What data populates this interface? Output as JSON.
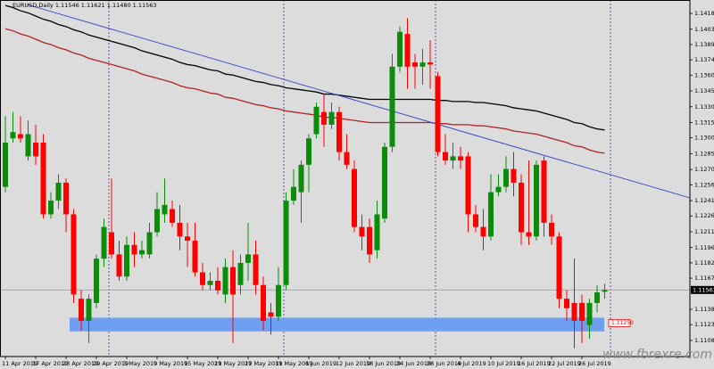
{
  "chart_data": {
    "type": "candlestick",
    "title": "EURUSD,Daily  1.11546 1.11621 1.11480 1.11563",
    "watermark": "www.fbrexre.com",
    "categories": [
      "11 Apr 2019",
      null,
      null,
      null,
      "17 Apr 2019",
      null,
      null,
      null,
      "23 Apr 2019",
      null,
      null,
      null,
      "29 Apr 2019",
      null,
      null,
      null,
      "3 May 2019",
      null,
      null,
      null,
      "9 May 2019",
      null,
      null,
      null,
      "15 May 2019",
      null,
      null,
      null,
      "21 May 2019",
      null,
      null,
      null,
      "27 May 2019",
      null,
      null,
      null,
      "31 May 2019",
      null,
      null,
      null,
      "6 Jun 2019",
      null,
      null,
      null,
      "12 Jun 2019",
      null,
      null,
      null,
      "18 Jun 2019",
      null,
      null,
      null,
      "24 Jun 2019",
      null,
      null,
      null,
      "28 Jun 2019",
      null,
      null,
      null,
      "4 Jul 2019",
      null,
      null,
      null,
      "10 Jul 2019",
      null,
      null,
      null,
      "16 Jul 2019",
      null,
      null,
      null,
      "22 Jul 2019",
      null,
      null,
      null,
      "26 Jul 2019",
      null,
      null,
      null
    ],
    "up_color": "#0b8c0b",
    "down_color": "#ff0000",
    "open": [
      1.1254,
      1.13,
      1.1304,
      1.1283,
      1.1296,
      1.1296,
      1.1228,
      1.1241,
      1.1258,
      1.1228,
      1.1148,
      1.1127,
      1.1144,
      1.1186,
      1.1211,
      1.119,
      1.1169,
      1.1199,
      1.119,
      1.119,
      1.1211,
      1.1228,
      1.1233,
      1.122,
      1.1207,
      1.1203,
      1.1173,
      1.1161,
      1.1165,
      1.1152,
      1.1178,
      1.1161,
      1.1182,
      1.119,
      1.1161,
      1.1135,
      1.1131,
      1.1161,
      1.1241,
      1.1249,
      1.1275,
      1.1304,
      1.1325,
      1.1313,
      1.1325,
      1.1287,
      1.1271,
      1.1216,
      1.1216,
      1.1194,
      1.1224,
      1.1292,
      1.1368,
      1.1399,
      1.1372,
      1.1368,
      1.1372,
      1.1359,
      1.1287,
      1.1279,
      1.1283,
      1.1283,
      1.1228,
      1.1216,
      1.1207,
      1.1249,
      1.1254,
      1.1271,
      1.1258,
      1.1211,
      1.1207,
      1.1279,
      1.122,
      1.1207,
      1.1148,
      1.1144,
      1.1144,
      1.1123,
      1.1144,
      1.11546
    ],
    "high": [
      1.1321,
      1.1325,
      1.1321,
      1.1317,
      1.1313,
      1.1304,
      1.1249,
      1.1266,
      1.1262,
      1.1233,
      1.1156,
      1.1152,
      1.119,
      1.1224,
      1.1262,
      1.1203,
      1.1207,
      1.1211,
      1.1203,
      1.122,
      1.1249,
      1.1262,
      1.1241,
      1.1237,
      1.122,
      1.122,
      1.1182,
      1.1173,
      1.1178,
      1.1186,
      1.1194,
      1.119,
      1.122,
      1.1203,
      1.1169,
      1.1144,
      1.1178,
      1.1249,
      1.1271,
      1.1279,
      1.1304,
      1.1334,
      1.1342,
      1.1334,
      1.133,
      1.1304,
      1.1279,
      1.1228,
      1.1224,
      1.1241,
      1.1296,
      1.138,
      1.1406,
      1.1414,
      1.138,
      1.1385,
      1.1393,
      1.1363,
      1.1304,
      1.1296,
      1.1292,
      1.1287,
      1.1237,
      1.1233,
      1.1266,
      1.1266,
      1.1283,
      1.1287,
      1.1266,
      1.1279,
      1.1279,
      1.1283,
      1.1228,
      1.1211,
      1.1156,
      1.1186,
      1.1152,
      1.1148,
      1.1161,
      1.11621
    ],
    "low": [
      1.1249,
      1.1296,
      1.1296,
      1.1279,
      1.1275,
      1.1224,
      1.1224,
      1.1233,
      1.1211,
      1.1144,
      1.1118,
      1.1106,
      1.1139,
      1.1178,
      1.1186,
      1.1165,
      1.1165,
      1.1178,
      1.1186,
      1.1186,
      1.1207,
      1.122,
      1.1216,
      1.1194,
      1.1178,
      1.1169,
      1.1156,
      1.1156,
      1.1152,
      1.1144,
      1.1106,
      1.1152,
      1.1165,
      1.1152,
      1.1118,
      1.1114,
      1.1127,
      1.1156,
      1.1237,
      1.122,
      1.1249,
      1.13,
      1.1292,
      1.1309,
      1.1279,
      1.1271,
      1.1211,
      1.1194,
      1.1182,
      1.1186,
      1.122,
      1.1287,
      1.1363,
      1.1347,
      1.1347,
      1.1351,
      1.1347,
      1.1283,
      1.1275,
      1.1271,
      1.1271,
      1.1211,
      1.1211,
      1.1194,
      1.1203,
      1.1245,
      1.1249,
      1.1245,
      1.1199,
      1.1199,
      1.1203,
      1.1207,
      1.1199,
      1.1139,
      1.1127,
      1.1101,
      1.1106,
      1.111,
      1.1135,
      1.1148
    ],
    "close": [
      1.1296,
      1.1306,
      1.13,
      1.1304,
      1.1283,
      1.1228,
      1.1241,
      1.1258,
      1.1228,
      1.1152,
      1.1127,
      1.1148,
      1.1186,
      1.1216,
      1.119,
      1.1169,
      1.1199,
      1.119,
      1.1194,
      1.1211,
      1.1233,
      1.1237,
      1.122,
      1.1207,
      1.1203,
      1.1173,
      1.1161,
      1.1165,
      1.1156,
      1.1178,
      1.1152,
      1.1182,
      1.119,
      1.1161,
      1.1127,
      1.1131,
      1.1161,
      1.1241,
      1.1254,
      1.1275,
      1.13,
      1.133,
      1.1313,
      1.1325,
      1.1287,
      1.1275,
      1.1216,
      1.1207,
      1.119,
      1.1228,
      1.1292,
      1.1368,
      1.1401,
      1.1368,
      1.1368,
      1.1372,
      1.137,
      1.1287,
      1.1279,
      1.1283,
      1.1279,
      1.1228,
      1.1216,
      1.1207,
      1.1249,
      1.1254,
      1.1271,
      1.1258,
      1.1211,
      1.1207,
      1.1275,
      1.122,
      1.1207,
      1.1148,
      1.1139,
      1.1127,
      1.1127,
      1.1144,
      1.1154,
      1.11563
    ],
    "lines": [
      {
        "color": "#000000",
        "values": [
          1.1426,
          1.1424,
          1.1421,
          1.1419,
          1.1416,
          1.1413,
          1.1411,
          1.1408,
          1.1406,
          1.1403,
          1.1401,
          1.1398,
          1.1396,
          1.1394,
          1.1392,
          1.139,
          1.1388,
          1.1386,
          1.1383,
          1.1381,
          1.1379,
          1.1377,
          1.1375,
          1.1372,
          1.137,
          1.1369,
          1.1367,
          1.1365,
          1.1364,
          1.1361,
          1.136,
          1.1358,
          1.1356,
          1.1354,
          1.1353,
          1.1351,
          1.135,
          1.1348,
          1.1347,
          1.1346,
          1.1345,
          1.1344,
          1.1342,
          1.1342,
          1.1341,
          1.134,
          1.1339,
          1.1338,
          1.1337,
          1.1337,
          1.1337,
          1.1337,
          1.1337,
          1.1337,
          1.1337,
          1.1337,
          1.1337,
          1.1336,
          1.1336,
          1.1335,
          1.1335,
          1.1335,
          1.1334,
          1.1334,
          1.1333,
          1.1332,
          1.1331,
          1.1329,
          1.1328,
          1.1327,
          1.1326,
          1.1324,
          1.1322,
          1.132,
          1.1318,
          1.1315,
          1.1314,
          1.1311,
          1.1309,
          1.1308
        ]
      },
      {
        "color": "#b22222",
        "values": [
          1.1404,
          1.1402,
          1.1399,
          1.1397,
          1.1394,
          1.1391,
          1.1389,
          1.1386,
          1.1384,
          1.1381,
          1.1379,
          1.1376,
          1.1374,
          1.1372,
          1.137,
          1.1368,
          1.1366,
          1.1364,
          1.1361,
          1.1359,
          1.1357,
          1.1355,
          1.1353,
          1.135,
          1.1348,
          1.1347,
          1.1345,
          1.1343,
          1.1342,
          1.1339,
          1.1338,
          1.1336,
          1.1334,
          1.1332,
          1.1331,
          1.1329,
          1.1328,
          1.1326,
          1.1325,
          1.1324,
          1.1323,
          1.1322,
          1.132,
          1.132,
          1.1319,
          1.1318,
          1.1317,
          1.1316,
          1.1315,
          1.1315,
          1.1315,
          1.1315,
          1.1315,
          1.1315,
          1.1315,
          1.1315,
          1.1315,
          1.1314,
          1.1314,
          1.1313,
          1.1313,
          1.1313,
          1.1312,
          1.1312,
          1.1311,
          1.131,
          1.1309,
          1.1307,
          1.1306,
          1.1305,
          1.1304,
          1.1302,
          1.13,
          1.1298,
          1.1296,
          1.1293,
          1.1292,
          1.1289,
          1.1287,
          1.1286
        ]
      }
    ],
    "zone": {
      "high": 1.113,
      "low": 1.1117,
      "color": "#6f9ff0"
    },
    "alert": {
      "value": 1.1125,
      "label": "1.11250"
    },
    "last_price": 1.11563,
    "ylim": [
      1.10932,
      1.14312
    ],
    "yticks": [
      1.14185,
      1.14035,
      {
        "value": 1.1389,
        "label": "1.13890"
      },
      1.13745,
      {
        "value": 1.136,
        "label": "1.13600"
      },
      {
        "value": 1.1345,
        "label": "1.13450"
      },
      {
        "value": 1.133,
        "label": "1.13300"
      },
      {
        "value": 1.1315,
        "label": "1.13150"
      },
      1.13005,
      1.12855,
      1.12705,
      {
        "value": 1.1256,
        "label": "1.12560"
      },
      {
        "value": 1.1241,
        "label": "1.12410"
      },
      1.12265,
      1.12115,
      1.11965,
      {
        "value": 1.1182,
        "label": "1.11820"
      },
      1.11675,
      {
        "value": 1.1138,
        "label": "1.11380"
      },
      1.11235,
      1.11085
    ]
  }
}
